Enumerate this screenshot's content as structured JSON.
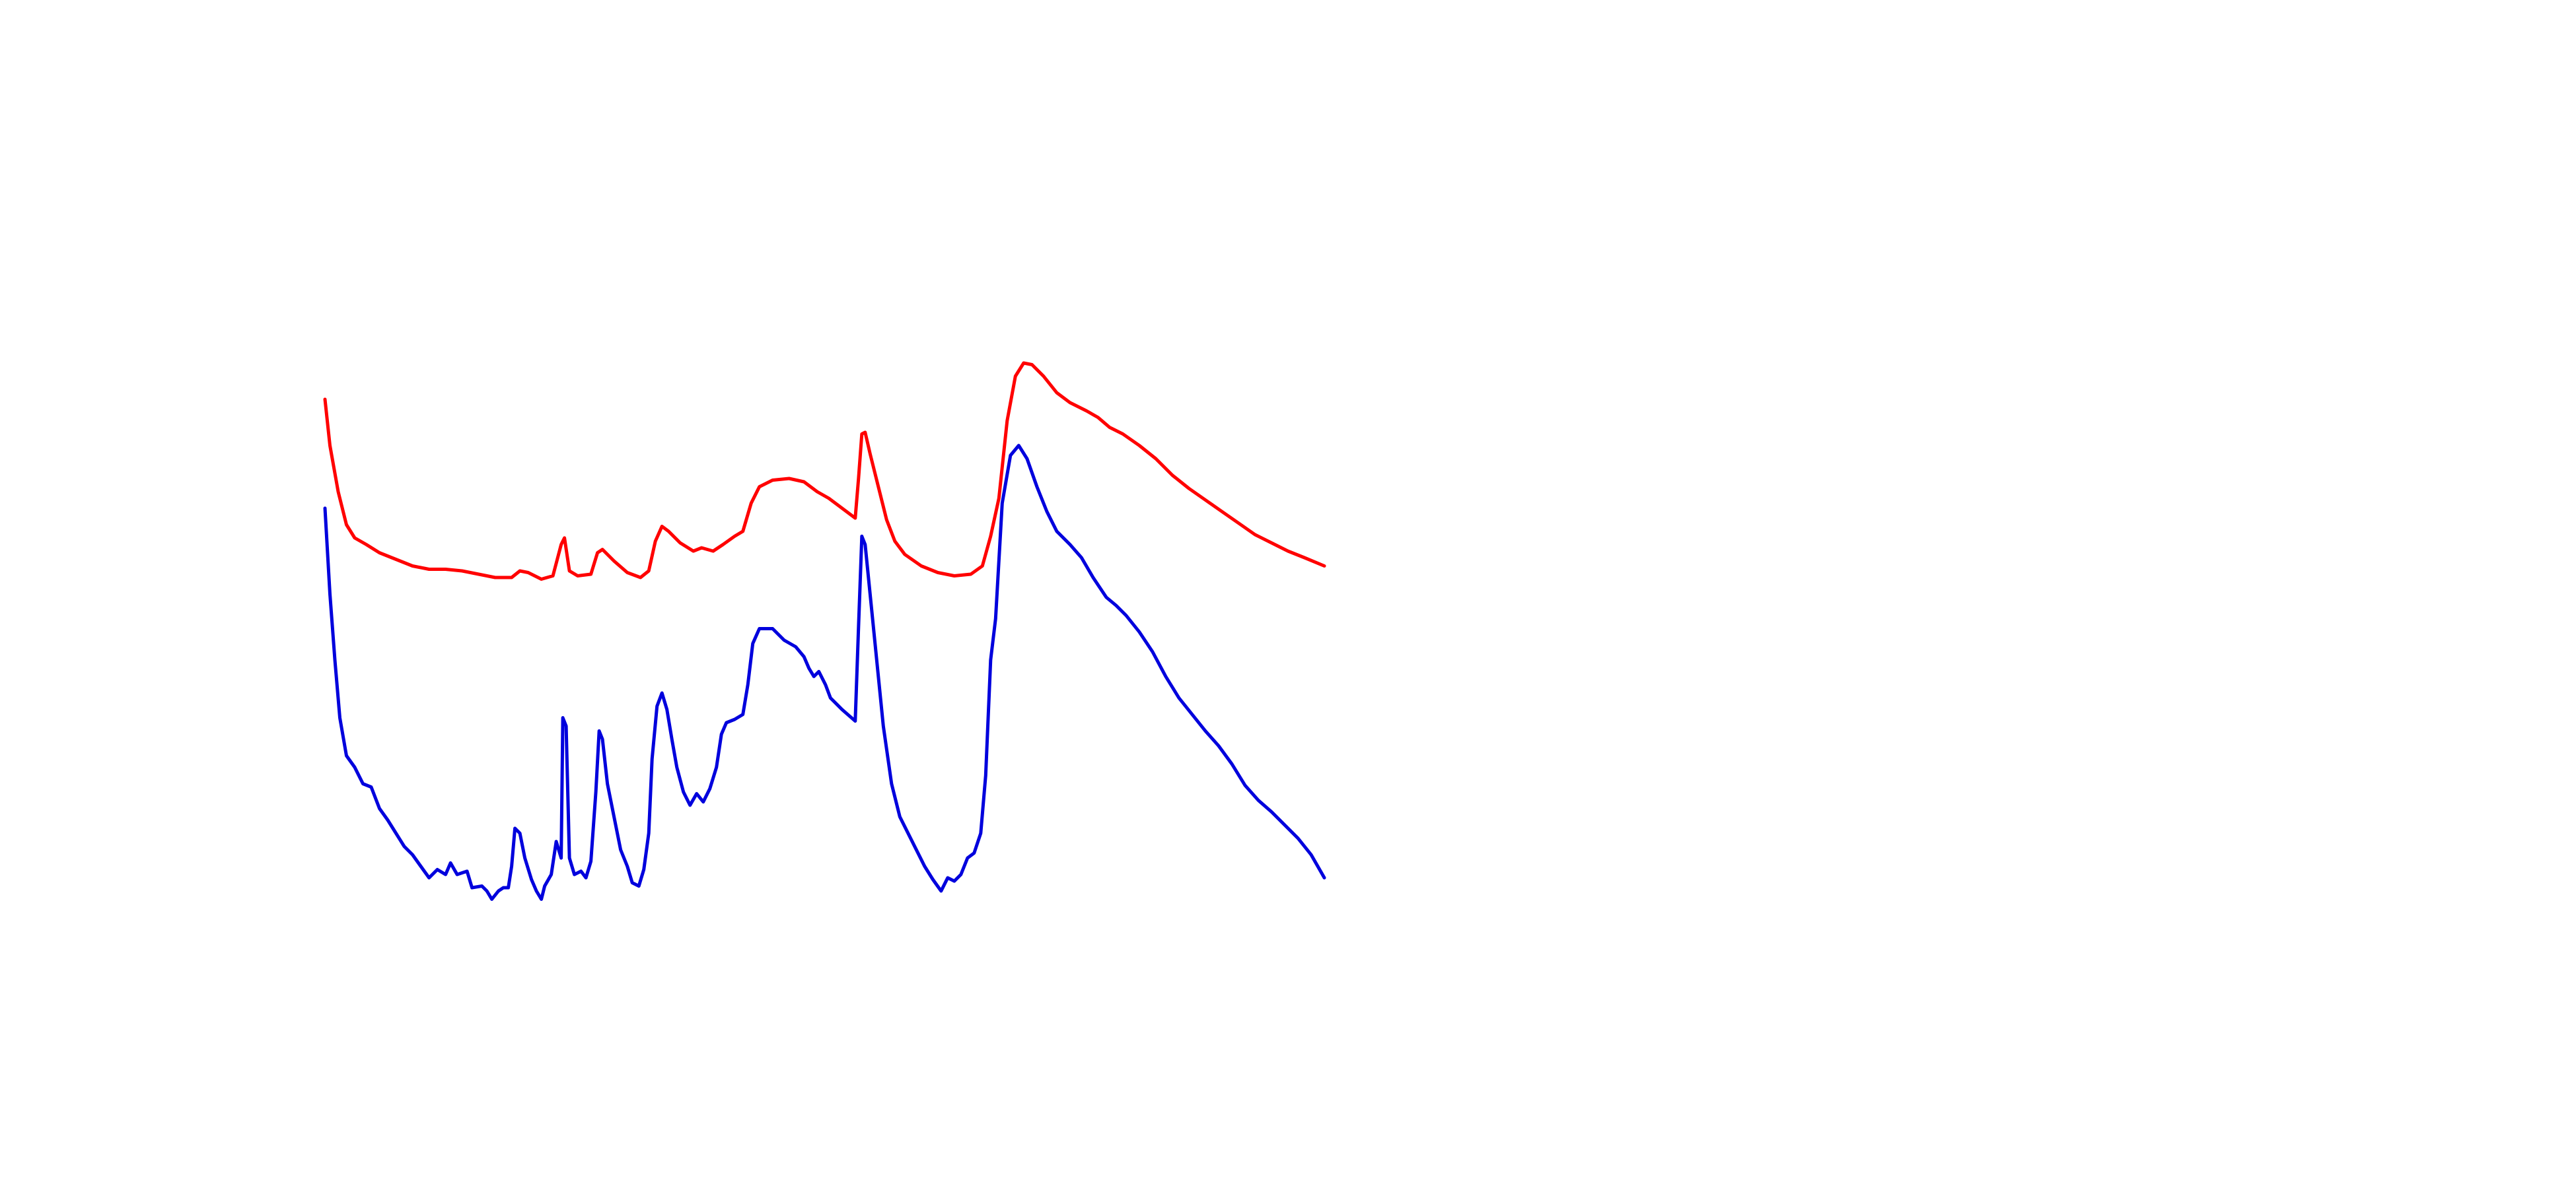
{
  "chart_data": {
    "type": "line",
    "xlim": [
      0,
      605
    ],
    "ylim": [
      0,
      400
    ],
    "series": [
      {
        "color": "#ff0000",
        "x": [
          0,
          3,
          8,
          13,
          18,
          25,
          33,
          43,
          53,
          63,
          73,
          83,
          93,
          103,
          113,
          118,
          123,
          131,
          138,
          143,
          145,
          148,
          153,
          161,
          165,
          168,
          175,
          183,
          191,
          196,
          200,
          204,
          208,
          215,
          223,
          228,
          235,
          241,
          248,
          253,
          258,
          263,
          271,
          281,
          290,
          298,
          305,
          313,
          321,
          323,
          325,
          327,
          330,
          335,
          340,
          345,
          351,
          361,
          371,
          381,
          391,
          398,
          403,
          408,
          413,
          418,
          423,
          428,
          435,
          443,
          451,
          461,
          468,
          475,
          483,
          493,
          503,
          513,
          523,
          533,
          543,
          553,
          563,
          573,
          583,
          593,
          605
        ],
        "values": [
          318,
          290,
          262,
          242,
          234,
          230,
          225,
          221,
          217,
          215,
          215,
          214,
          212,
          210,
          210,
          214,
          213,
          209,
          211,
          230,
          234,
          214,
          211,
          212,
          225,
          227,
          220,
          213,
          210,
          214,
          232,
          241,
          238,
          231,
          226,
          228,
          226,
          230,
          235,
          238,
          255,
          265,
          269,
          270,
          268,
          262,
          258,
          252,
          246,
          270,
          297,
          298,
          285,
          265,
          245,
          232,
          224,
          217,
          213,
          211,
          212,
          217,
          235,
          258,
          305,
          332,
          340,
          339,
          332,
          322,
          316,
          311,
          307,
          301,
          297,
          290,
          282,
          272,
          264,
          257,
          250,
          243,
          236,
          231,
          226,
          222,
          217
        ]
      },
      {
        "color": "#0000dd",
        "x": [
          0,
          3,
          6,
          9,
          13,
          18,
          23,
          28,
          33,
          38,
          43,
          48,
          53,
          58,
          63,
          68,
          73,
          76,
          80,
          86,
          89,
          95,
          98,
          101,
          105,
          108,
          111,
          113,
          115,
          118,
          121,
          125,
          128,
          131,
          133,
          137,
          140,
          143,
          144,
          146,
          148,
          151,
          155,
          158,
          161,
          164,
          166,
          168,
          171,
          175,
          179,
          183,
          186,
          190,
          193,
          196,
          198,
          201,
          204,
          207,
          210,
          213,
          217,
          221,
          225,
          229,
          233,
          237,
          240,
          243,
          248,
          253,
          256,
          259,
          263,
          271,
          278,
          285,
          290,
          293,
          296,
          299,
          303,
          306,
          313,
          321,
          323,
          325,
          327,
          330,
          333,
          338,
          343,
          348,
          353,
          358,
          363,
          368,
          373,
          377,
          381,
          385,
          389,
          393,
          397,
          400,
          403,
          406,
          410,
          415,
          420,
          425,
          431,
          437,
          443,
          451,
          458,
          465,
          473,
          479,
          485,
          493,
          501,
          509,
          517,
          525,
          533,
          541,
          549,
          557,
          565,
          573,
          581,
          589,
          597,
          605
        ],
        "values": [
          252,
          200,
          160,
          125,
          102,
          95,
          85,
          83,
          70,
          63,
          55,
          47,
          42,
          35,
          28,
          33,
          30,
          37,
          30,
          32,
          22,
          23,
          20,
          15,
          20,
          22,
          22,
          35,
          58,
          55,
          40,
          27,
          20,
          15,
          23,
          30,
          50,
          40,
          125,
          120,
          40,
          30,
          32,
          28,
          38,
          80,
          117,
          112,
          85,
          65,
          45,
          35,
          25,
          23,
          33,
          55,
          100,
          132,
          140,
          130,
          112,
          95,
          80,
          72,
          79,
          74,
          82,
          95,
          115,
          122,
          124,
          127,
          145,
          170,
          179,
          179,
          172,
          168,
          162,
          155,
          150,
          153,
          145,
          137,
          130,
          123,
          180,
          235,
          230,
          200,
          170,
          120,
          85,
          65,
          55,
          45,
          35,
          27,
          20,
          28,
          26,
          30,
          40,
          43,
          55,
          90,
          160,
          185,
          255,
          284,
          290,
          282,
          265,
          250,
          238,
          230,
          222,
          210,
          198,
          193,
          187,
          177,
          165,
          150,
          137,
          127,
          117,
          108,
          97,
          84,
          75,
          68,
          60,
          52,
          42,
          28
        ]
      }
    ]
  }
}
